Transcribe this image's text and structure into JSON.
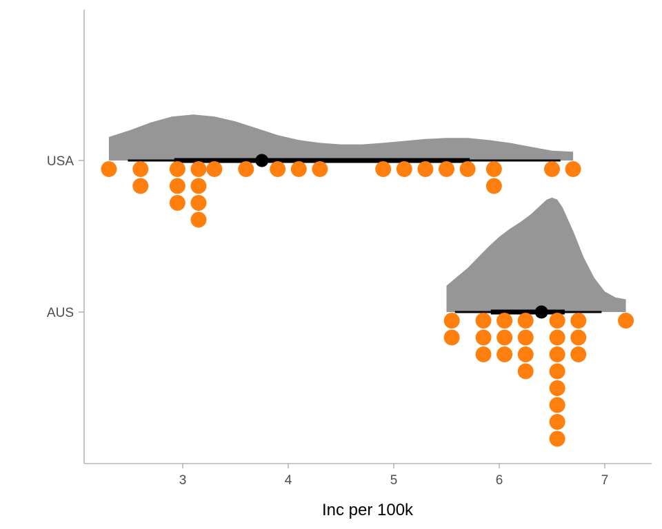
{
  "chart_data": {
    "type": "raincloud",
    "xlabel": "Inc per 100k",
    "ylabel": "",
    "xlim": [
      2.2,
      7.45
    ],
    "x_ticks": [
      3,
      4,
      5,
      6,
      7
    ],
    "categories": [
      "USA",
      "AUS"
    ],
    "grid": false,
    "legend": "none",
    "colors": {
      "density": "#969696",
      "points": "#ff7f0e",
      "summary": "#000000",
      "axis": "#a6a6a6"
    },
    "groups": [
      {
        "name": "USA",
        "points": [
          2.3,
          2.6,
          2.6,
          2.95,
          2.95,
          2.95,
          3.15,
          3.15,
          3.15,
          3.15,
          3.3,
          3.6,
          3.9,
          4.1,
          4.3,
          4.9,
          5.1,
          5.3,
          5.5,
          5.7,
          5.95,
          5.95,
          6.5,
          6.7
        ],
        "summary": {
          "median": 3.75,
          "inner_interval": [
            2.92,
            5.72
          ],
          "outer_interval": [
            2.48,
            6.58
          ]
        },
        "density": {
          "x": [
            2.3,
            2.5,
            2.7,
            2.9,
            3.1,
            3.3,
            3.5,
            3.7,
            3.9,
            4.1,
            4.3,
            4.5,
            4.7,
            4.9,
            5.1,
            5.3,
            5.5,
            5.7,
            5.9,
            6.1,
            6.3,
            6.5,
            6.7
          ],
          "y": [
            0.24,
            0.31,
            0.39,
            0.45,
            0.47,
            0.45,
            0.4,
            0.33,
            0.26,
            0.21,
            0.18,
            0.165,
            0.165,
            0.18,
            0.2,
            0.22,
            0.23,
            0.23,
            0.21,
            0.18,
            0.14,
            0.1,
            0.09
          ]
        }
      },
      {
        "name": "AUS",
        "points": [
          5.55,
          5.55,
          5.85,
          5.85,
          5.85,
          6.05,
          6.05,
          6.05,
          6.25,
          6.25,
          6.25,
          6.25,
          6.55,
          6.55,
          6.55,
          6.55,
          6.55,
          6.55,
          6.55,
          6.55,
          6.75,
          6.75,
          6.75,
          7.2
        ],
        "summary": {
          "median": 6.4,
          "inner_interval": [
            5.92,
            6.62
          ],
          "outer_interval": [
            5.58,
            6.97
          ]
        },
        "density": {
          "x": [
            5.5,
            5.6,
            5.7,
            5.8,
            5.9,
            6.0,
            6.1,
            6.2,
            6.3,
            6.4,
            6.45,
            6.5,
            6.55,
            6.6,
            6.7,
            6.8,
            6.9,
            7.0,
            7.1,
            7.2
          ],
          "y": [
            0.27,
            0.36,
            0.45,
            0.56,
            0.67,
            0.77,
            0.85,
            0.92,
            1.0,
            1.1,
            1.15,
            1.17,
            1.15,
            1.07,
            0.83,
            0.56,
            0.35,
            0.21,
            0.15,
            0.13
          ]
        }
      }
    ]
  }
}
